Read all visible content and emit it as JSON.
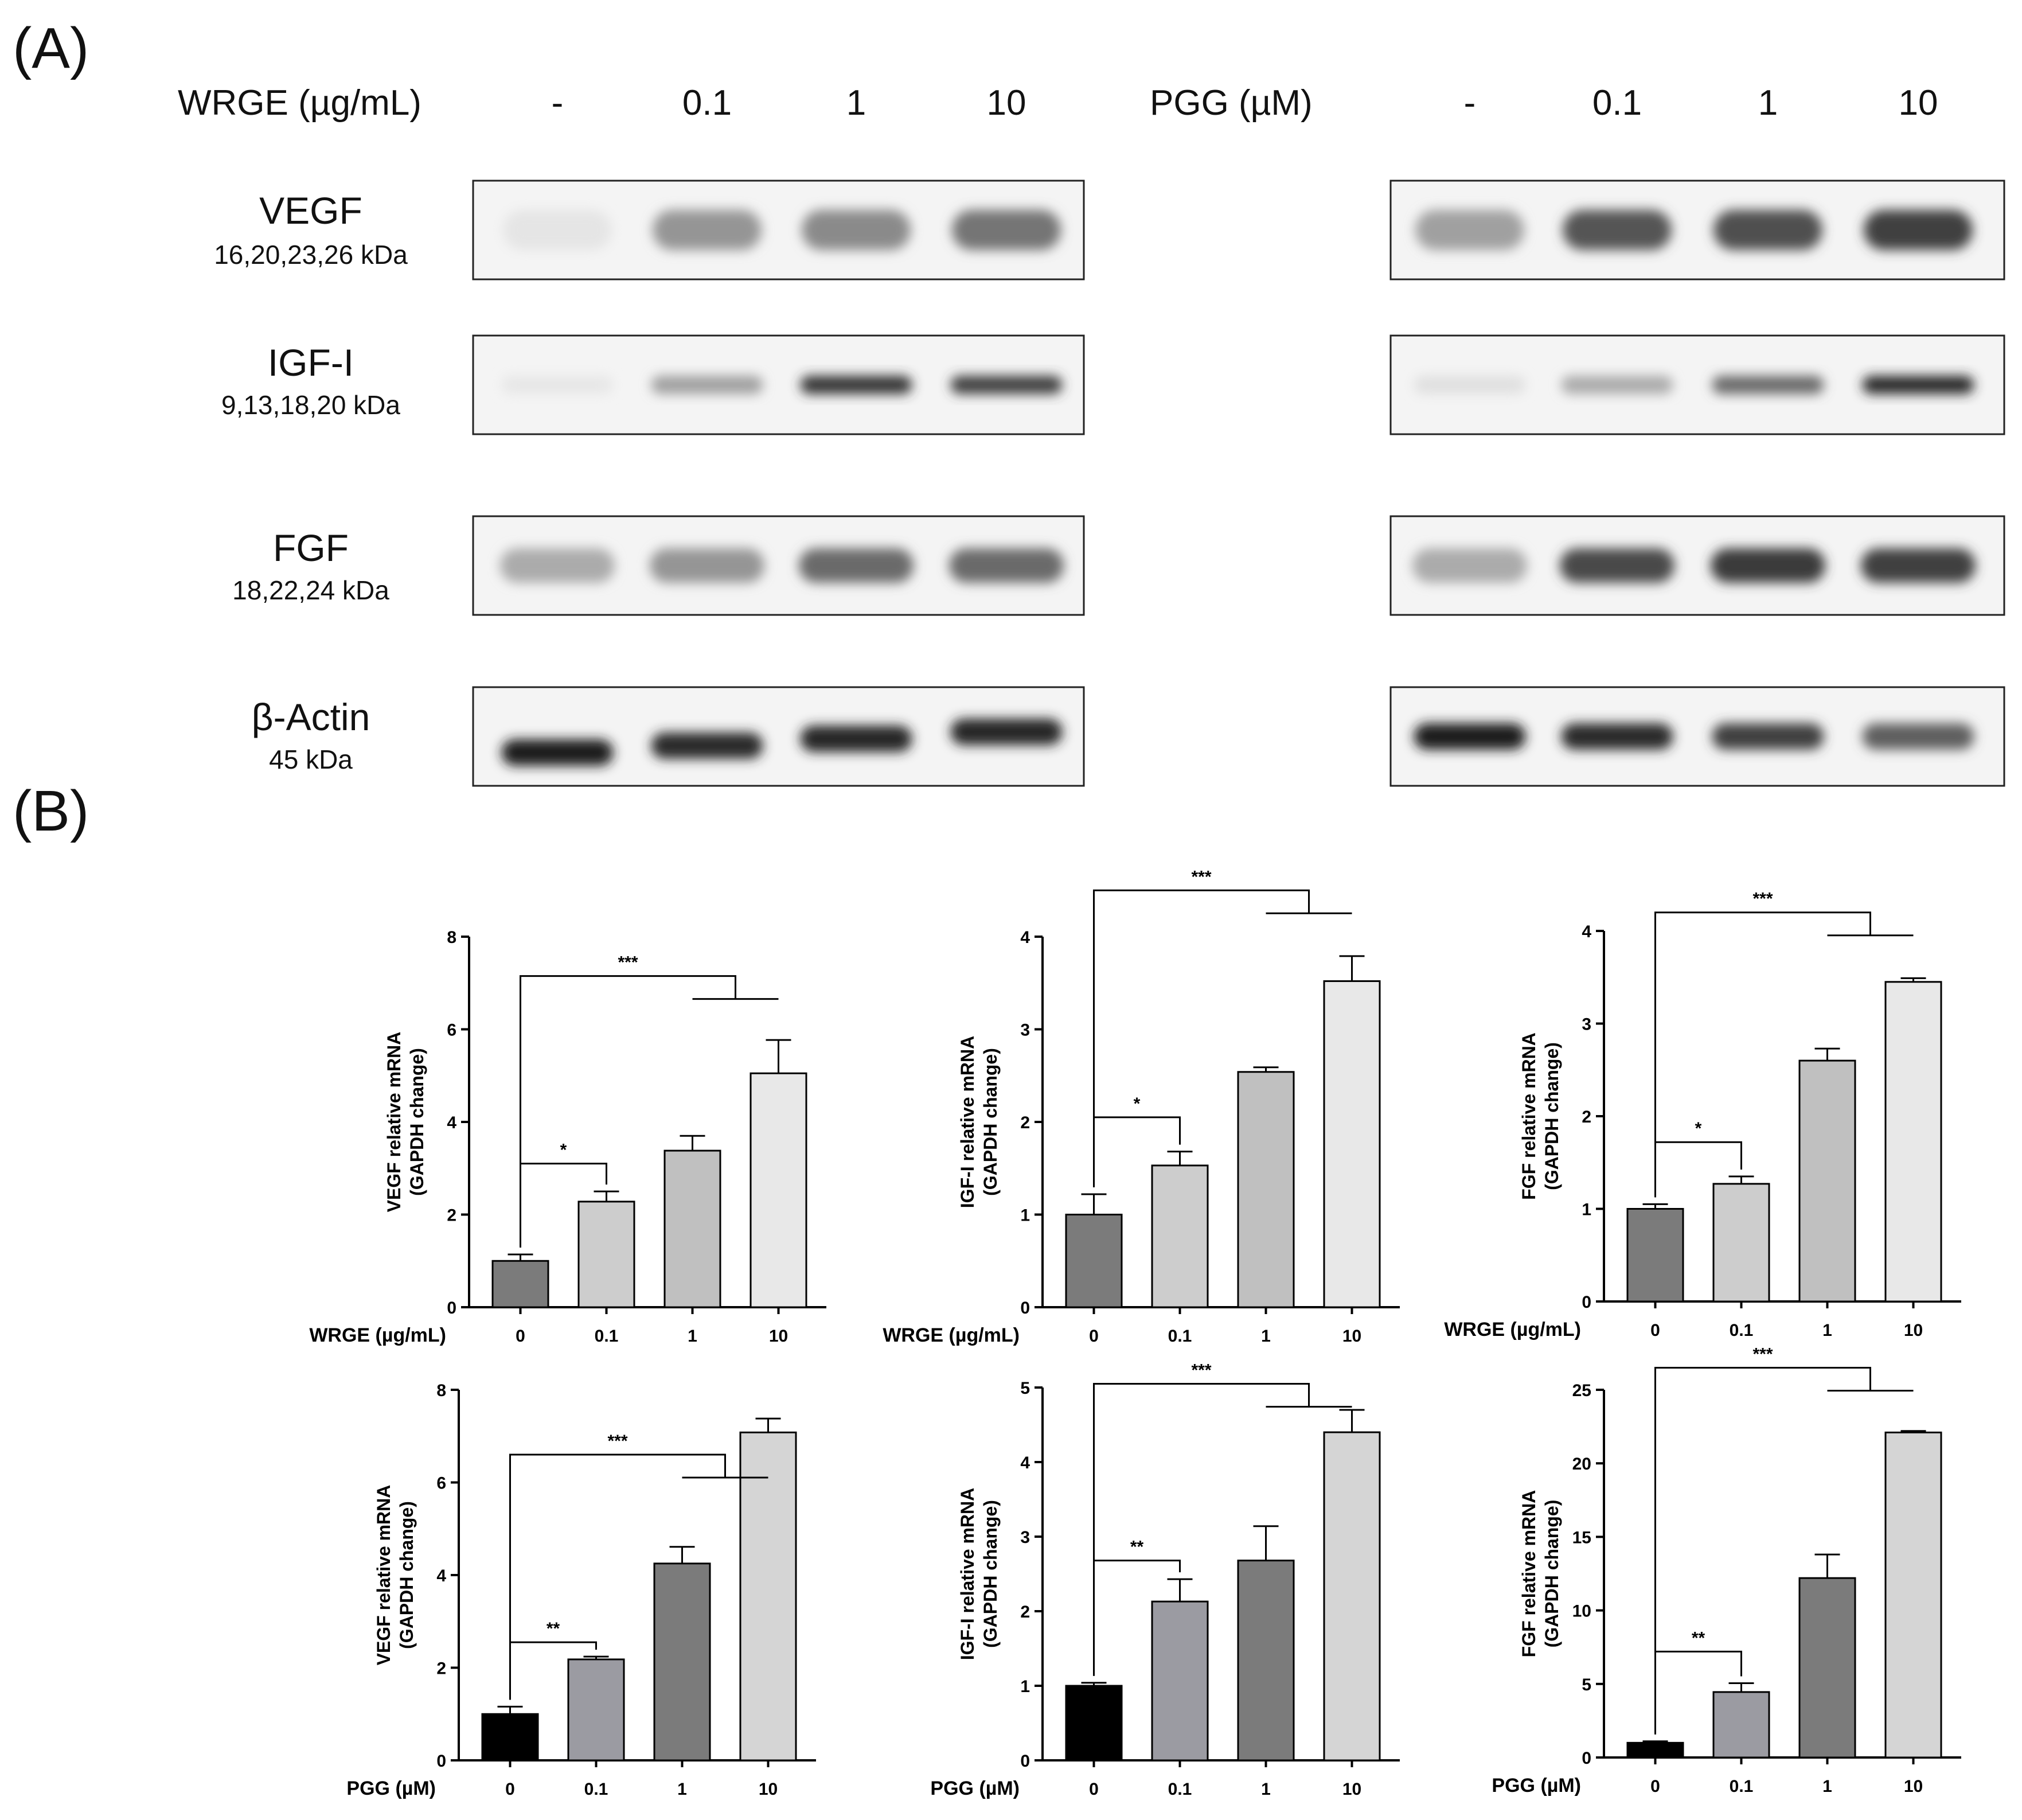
{
  "panel_a": {
    "label": "(A)",
    "groups": [
      {
        "treatment": "WRGE (µg/mL)",
        "lanes": [
          "-",
          "0.1",
          "1",
          "10"
        ]
      },
      {
        "treatment": "PGG (µM)",
        "lanes": [
          "-",
          "0.1",
          "1",
          "10"
        ]
      }
    ],
    "proteins": [
      {
        "name": "VEGF",
        "kda": "16,20,23,26 kDa"
      },
      {
        "name": "IGF-I",
        "kda": "9,13,18,20 kDa"
      },
      {
        "name": "FGF",
        "kda": "18,22,24 kDa"
      },
      {
        "name": "β-Actin",
        "kda": "45 kDa"
      }
    ],
    "band_intensity": [
      [
        [
          0.03,
          0.4,
          0.45,
          0.55
        ],
        [
          0.35,
          0.7,
          0.72,
          0.8
        ]
      ],
      [
        [
          0.02,
          0.35,
          0.85,
          0.8
        ],
        [
          0.05,
          0.3,
          0.6,
          0.9
        ]
      ],
      [
        [
          0.3,
          0.4,
          0.6,
          0.6
        ],
        [
          0.3,
          0.75,
          0.82,
          0.8
        ]
      ],
      [
        [
          0.95,
          0.9,
          0.92,
          0.92
        ],
        [
          0.95,
          0.9,
          0.8,
          0.65
        ]
      ]
    ]
  },
  "panel_b": {
    "label": "(B)"
  },
  "colors": {
    "wrge_bars": [
      "#7b7b7b",
      "#cdcdcd",
      "#c0c0c0",
      "#e8e8e8"
    ],
    "pgg_bars": [
      "#000000",
      "#9b9ba2",
      "#7b7b7b",
      "#d5d5d5"
    ]
  },
  "chart_data": [
    {
      "type": "bar",
      "title": "",
      "xlabel": "WRGE (µg/mL)",
      "ylabel": [
        "VEGF relative mRNA",
        "(GAPDH change)"
      ],
      "categories": [
        "0",
        "0.1",
        "1",
        "10"
      ],
      "values": [
        1.0,
        2.28,
        3.38,
        5.05
      ],
      "errors": [
        0.14,
        0.22,
        0.32,
        0.72
      ],
      "ylim": [
        0,
        8
      ],
      "yticks": [
        "0",
        "2",
        "4",
        "6",
        "8"
      ],
      "significance": [
        {
          "label": "*",
          "from": 0,
          "to": [
            1
          ],
          "bar_y": 3.1
        },
        {
          "label": "***",
          "from": 0,
          "to": [
            2,
            3
          ],
          "bar_y": 7.15
        }
      ]
    },
    {
      "type": "bar",
      "title": "",
      "xlabel": "WRGE (µg/mL)",
      "ylabel": [
        "IGF-I relative mRNA",
        "(GAPDH change)"
      ],
      "categories": [
        "0",
        "0.1",
        "1",
        "10"
      ],
      "values": [
        1.0,
        1.53,
        2.54,
        3.52
      ],
      "errors": [
        0.22,
        0.15,
        0.05,
        0.27
      ],
      "ylim": [
        0,
        4
      ],
      "yticks": [
        "0",
        "1",
        "2",
        "3",
        "4"
      ],
      "significance": [
        {
          "label": "*",
          "from": 0,
          "to": [
            1
          ],
          "bar_y": 2.05
        },
        {
          "label": "***",
          "from": 0,
          "to": [
            2,
            3
          ],
          "bar_y": 4.5
        }
      ]
    },
    {
      "type": "bar",
      "title": "",
      "xlabel": "WRGE (µg/mL)",
      "ylabel": [
        "FGF relative mRNA",
        "(GAPDH change)"
      ],
      "categories": [
        "0",
        "0.1",
        "1",
        "10"
      ],
      "values": [
        1.0,
        1.27,
        2.6,
        3.45
      ],
      "errors": [
        0.05,
        0.08,
        0.13,
        0.04
      ],
      "ylim": [
        0,
        4
      ],
      "yticks": [
        "0",
        "1",
        "2",
        "3",
        "4"
      ],
      "significance": [
        {
          "label": "*",
          "from": 0,
          "to": [
            1
          ],
          "bar_y": 1.72
        },
        {
          "label": "***",
          "from": 0,
          "to": [
            2,
            3
          ],
          "bar_y": 4.2
        }
      ]
    },
    {
      "type": "bar",
      "title": "",
      "xlabel": "PGG (µM)",
      "ylabel": [
        "VEGF relative mRNA",
        "(GAPDH change)"
      ],
      "categories": [
        "0",
        "0.1",
        "1",
        "10"
      ],
      "values": [
        1.0,
        2.18,
        4.25,
        7.08
      ],
      "errors": [
        0.16,
        0.06,
        0.36,
        0.3
      ],
      "ylim": [
        0,
        8
      ],
      "yticks": [
        "0",
        "2",
        "4",
        "6",
        "8"
      ],
      "significance": [
        {
          "label": "**",
          "from": 0,
          "to": [
            1
          ],
          "bar_y": 2.55
        },
        {
          "label": "***",
          "from": 0,
          "to": [
            2,
            3
          ],
          "bar_y": 6.6
        }
      ]
    },
    {
      "type": "bar",
      "title": "",
      "xlabel": "PGG (µM)",
      "ylabel": [
        "IGF-I relative mRNA",
        "(GAPDH change)"
      ],
      "categories": [
        "0",
        "0.1",
        "1",
        "10"
      ],
      "values": [
        1.0,
        2.13,
        2.68,
        4.4
      ],
      "errors": [
        0.04,
        0.3,
        0.46,
        0.3
      ],
      "ylim": [
        0,
        5
      ],
      "yticks": [
        "0",
        "1",
        "2",
        "3",
        "4",
        "5"
      ],
      "significance": [
        {
          "label": "**",
          "from": 0,
          "to": [
            1
          ],
          "bar_y": 2.68
        },
        {
          "label": "***",
          "from": 0,
          "to": [
            2,
            3
          ],
          "bar_y": 5.05
        }
      ]
    },
    {
      "type": "bar",
      "title": "",
      "xlabel": "PGG (µM)",
      "ylabel": [
        "FGF relative mRNA",
        "(GAPDH change)"
      ],
      "categories": [
        "0",
        "0.1",
        "1",
        "10"
      ],
      "values": [
        1.0,
        4.45,
        12.2,
        22.1
      ],
      "errors": [
        0.1,
        0.6,
        1.6,
        0.1
      ],
      "ylim": [
        0,
        25
      ],
      "yticks": [
        "0",
        "5",
        "10",
        "15",
        "20",
        "25"
      ],
      "significance": [
        {
          "label": "**",
          "from": 0,
          "to": [
            1
          ],
          "bar_y": 7.2
        },
        {
          "label": "***",
          "from": 0,
          "to": [
            2,
            3
          ],
          "bar_y": 26.5
        }
      ]
    }
  ]
}
